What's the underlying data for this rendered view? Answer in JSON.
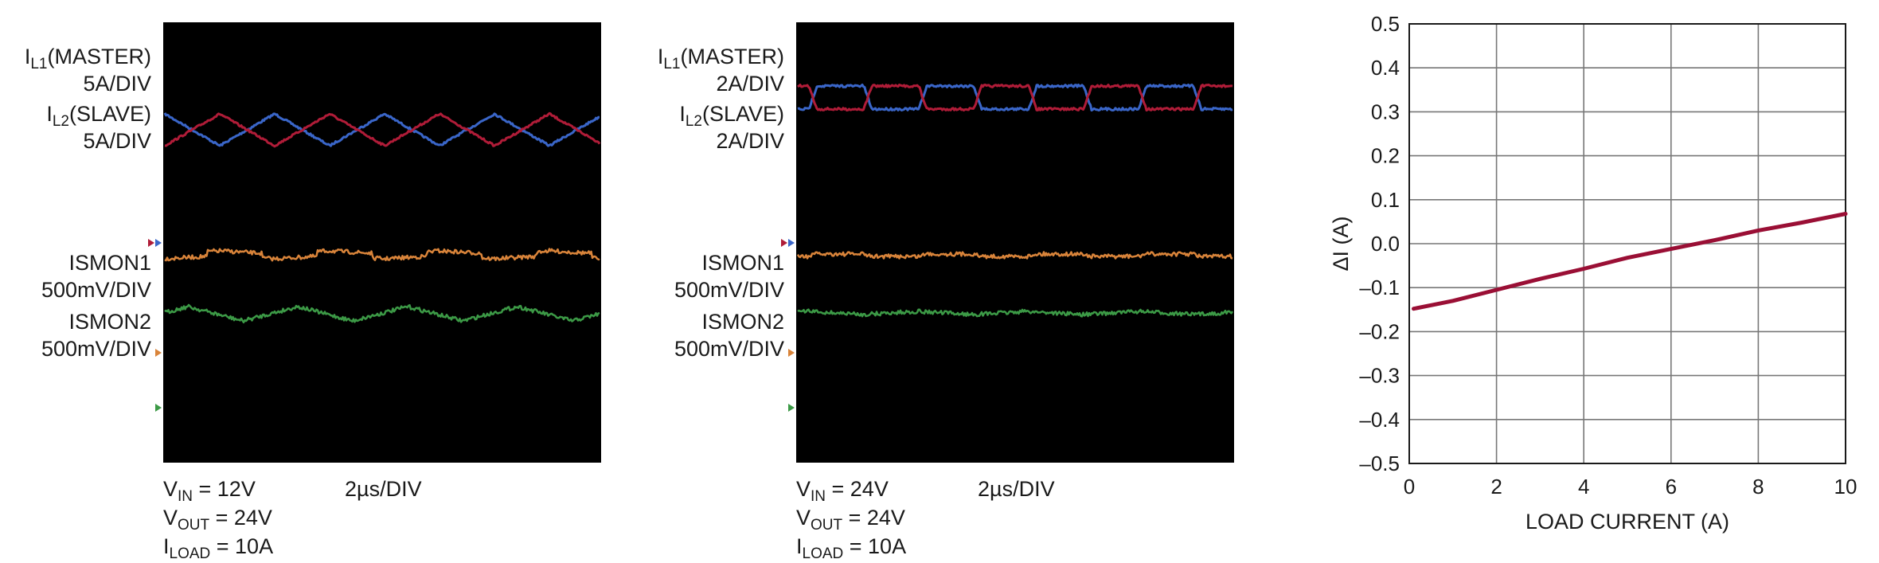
{
  "scopes": [
    {
      "ch1_prefix": "I",
      "ch1_sub": "L1",
      "ch1_suffix": "(MASTER)",
      "ch1_scale": "5A/DIV",
      "ch2_prefix": "I",
      "ch2_sub": "L2",
      "ch2_suffix": "(SLAVE)",
      "ch2_scale": "5A/DIV",
      "ch3_name": "ISMON1",
      "ch3_scale": "500mV/DIV",
      "ch4_name": "ISMON2",
      "ch4_scale": "500mV/DIV",
      "vin_sub": "IN",
      "vin_value": " = 12V",
      "vout_sub": "OUT",
      "vout_value": " = 24V",
      "iload_sub": "LOAD",
      "iload_value": " = 10A",
      "timebase": "2µs/DIV"
    },
    {
      "ch1_prefix": "I",
      "ch1_sub": "L1",
      "ch1_suffix": "(MASTER)",
      "ch1_scale": "2A/DIV",
      "ch2_prefix": "I",
      "ch2_sub": "L2",
      "ch2_suffix": "(SLAVE)",
      "ch2_scale": "2A/DIV",
      "ch3_name": "ISMON1",
      "ch3_scale": "500mV/DIV",
      "ch4_name": "ISMON2",
      "ch4_scale": "500mV/DIV",
      "vin_sub": "IN",
      "vin_value": " = 24V",
      "vout_sub": "OUT",
      "vout_value": " = 24V",
      "iload_sub": "LOAD",
      "iload_value": " = 10A",
      "timebase": "2µs/DIV"
    }
  ],
  "colors": {
    "scope_bg": "#000000",
    "master": "#3a66c9",
    "slave": "#b01c38",
    "ismon1": "#d9843a",
    "ismon2": "#3c9a46",
    "curve": "#9a0f35",
    "grid": "#777777"
  },
  "chart_data": {
    "type": "line",
    "xlabel": "LOAD CURRENT (A)",
    "ylabel_symbol": "Δ",
    "ylabel_text": "I (A)",
    "xlim": [
      0,
      10
    ],
    "ylim": [
      -0.5,
      0.5
    ],
    "xticks": [
      "0",
      "2",
      "4",
      "6",
      "8",
      "10"
    ],
    "yticks": [
      "0.5",
      "0.4",
      "0.3",
      "0.2",
      "0.1",
      "0.0",
      "–0.1",
      "–0.2",
      "–0.3",
      "–0.4",
      "–0.5"
    ],
    "grid": true,
    "series": [
      {
        "x": [
          0.1,
          0.5,
          1,
          2,
          3,
          4,
          5,
          6,
          7,
          8,
          9,
          10
        ],
        "y": [
          -0.148,
          -0.14,
          -0.13,
          -0.105,
          -0.08,
          -0.057,
          -0.032,
          -0.012,
          0.008,
          0.03,
          0.048,
          0.068
        ]
      }
    ]
  }
}
